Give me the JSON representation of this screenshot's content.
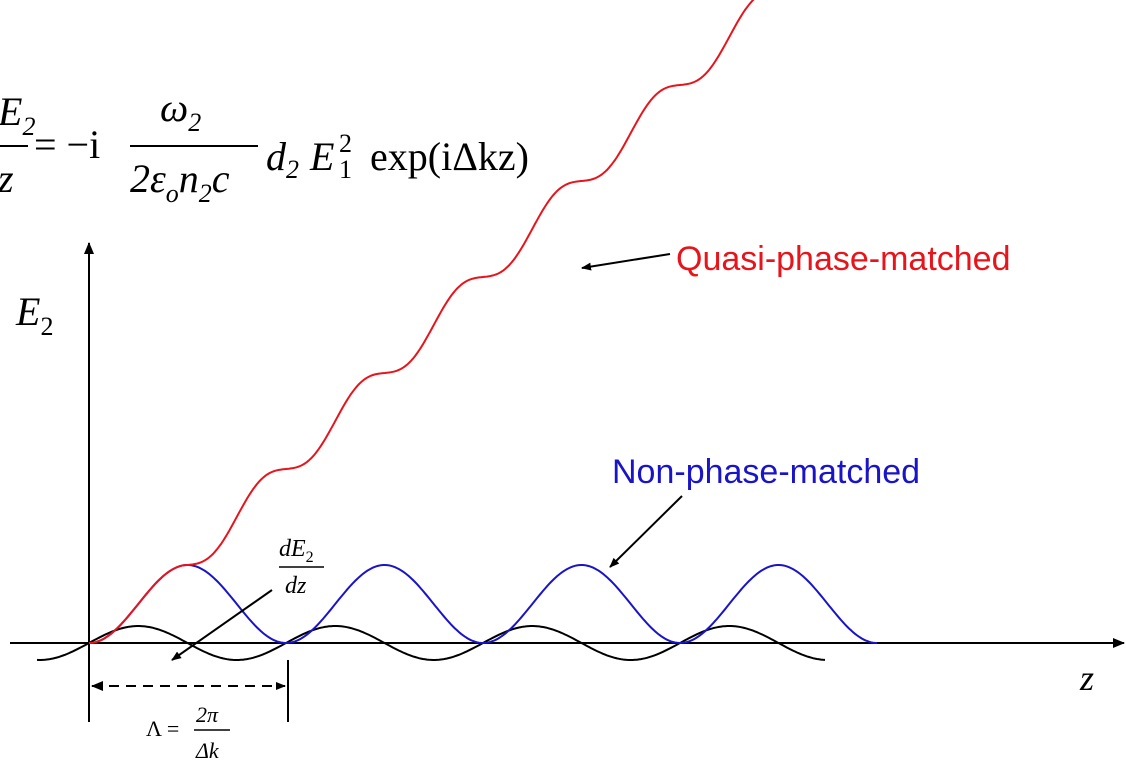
{
  "equation": {
    "lhs_num": "dE",
    "lhs_num_sub": "2",
    "lhs_den": "dz",
    "equals_minus_i": "= −i",
    "frac_num": "ω",
    "frac_num_sub": "2",
    "frac_den_a": "2ε",
    "frac_den_a_sub": "o",
    "frac_den_b": "n",
    "frac_den_b_sub": "2",
    "frac_den_c": "c",
    "d": "d",
    "d_sub": "2",
    "E": "E",
    "E_sub": "1",
    "E_sup": "2",
    "exp": "exp(iΔkz)"
  },
  "axes": {
    "ylabel": "E",
    "ylabel_sub": "2",
    "xlabel": "z"
  },
  "curves": {
    "qpm": {
      "label": "Quasi-phase-matched",
      "color": "#e8141b"
    },
    "npm": {
      "label": "Non-phase-matched",
      "color": "#1a14c8"
    },
    "deriv": {
      "label_num": "dE",
      "label_num_sub": "2",
      "label_den": "dz",
      "color": "#000000"
    }
  },
  "period": {
    "lambda": "Λ =",
    "num": "2π",
    "den": "Δk"
  }
}
